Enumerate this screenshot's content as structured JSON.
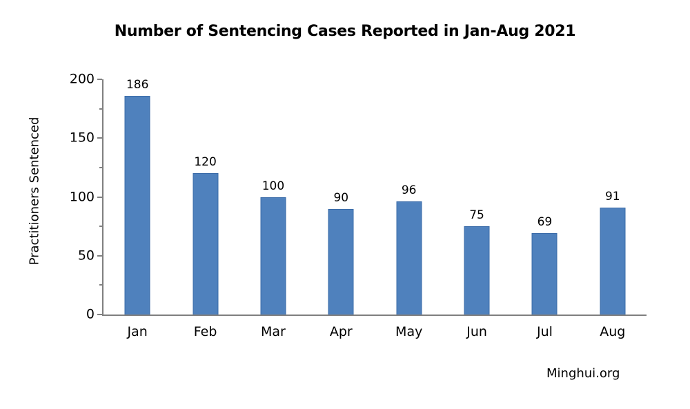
{
  "source": "Minghui.org",
  "chart_data": {
    "type": "bar",
    "title": "Number of Sentencing Cases Reported in Jan-Aug 2021",
    "categories": [
      "Jan",
      "Feb",
      "Mar",
      "Apr",
      "May",
      "Jun",
      "Jul",
      "Aug"
    ],
    "values": [
      186,
      120,
      100,
      90,
      96,
      75,
      69,
      91
    ],
    "xlabel": "",
    "ylabel": "Practitioners Sentenced",
    "ylim": [
      0,
      200
    ],
    "yticks": [
      0,
      50,
      100,
      150,
      200
    ],
    "minor_yticks": [
      25,
      75,
      125,
      175
    ],
    "grid": false,
    "legend_position": "none",
    "data_labels": true,
    "bar_color": "#4F81BD",
    "bar_border_color": "#3A6BA8",
    "axis_color": "#7F7F7F",
    "text_color": "#000000",
    "background_color": "#FFFFFF"
  }
}
